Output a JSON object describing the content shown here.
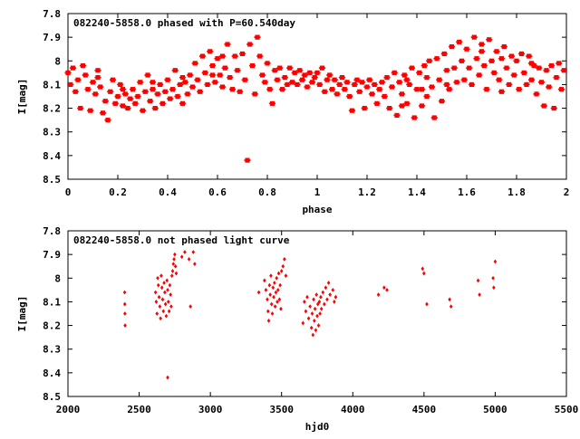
{
  "chart_data": [
    {
      "type": "scatter",
      "title": "082240-5858.0 phased with P=60.540day",
      "xlabel": "phase",
      "ylabel": "I[mag]",
      "xlim": [
        0,
        2
      ],
      "ylim": [
        7.8,
        8.5
      ],
      "y_inverted": true,
      "x_ticks": [
        "0",
        "0.2",
        "0.4",
        "0.6",
        "0.8",
        "1",
        "1.2",
        "1.4",
        "1.6",
        "1.8",
        "2"
      ],
      "x_tick_values": [
        0,
        0.2,
        0.4,
        0.6,
        0.8,
        1,
        1.2,
        1.4,
        1.6,
        1.8,
        2
      ],
      "y_ticks": [
        "7.8",
        "7.9",
        "8",
        "8.1",
        "8.2",
        "8.3",
        "8.4",
        "8.5"
      ],
      "y_tick_values": [
        7.8,
        7.9,
        8,
        8.1,
        8.2,
        8.3,
        8.4,
        8.5
      ],
      "grid": false,
      "marker_color": "#ff0000",
      "points": [
        [
          0.0,
          8.05
        ],
        [
          0.01,
          8.1
        ],
        [
          0.02,
          8.03
        ],
        [
          0.03,
          8.13
        ],
        [
          0.04,
          8.08
        ],
        [
          0.05,
          8.2
        ],
        [
          0.06,
          8.02
        ],
        [
          0.07,
          8.06
        ],
        [
          0.08,
          8.12
        ],
        [
          0.09,
          8.21
        ],
        [
          0.1,
          8.09
        ],
        [
          0.11,
          8.14
        ],
        [
          0.12,
          8.04
        ],
        [
          0.13,
          8.11
        ],
        [
          0.14,
          8.22
        ],
        [
          0.15,
          8.17
        ],
        [
          0.16,
          8.25
        ],
        [
          0.17,
          8.13
        ],
        [
          0.18,
          8.08
        ],
        [
          0.19,
          8.18
        ],
        [
          0.2,
          8.15
        ],
        [
          0.21,
          8.1
        ],
        [
          0.22,
          8.19
        ],
        [
          0.23,
          8.14
        ],
        [
          0.24,
          8.2
        ],
        [
          0.25,
          8.16
        ],
        [
          0.26,
          8.12
        ],
        [
          0.27,
          8.18
        ],
        [
          0.28,
          8.15
        ],
        [
          0.29,
          8.09
        ],
        [
          0.3,
          8.21
        ],
        [
          0.31,
          8.13
        ],
        [
          0.32,
          8.06
        ],
        [
          0.33,
          8.17
        ],
        [
          0.34,
          8.12
        ],
        [
          0.35,
          8.2
        ],
        [
          0.36,
          8.14
        ],
        [
          0.37,
          8.1
        ],
        [
          0.38,
          8.18
        ],
        [
          0.39,
          8.13
        ],
        [
          0.4,
          8.08
        ],
        [
          0.41,
          8.16
        ],
        [
          0.42,
          8.12
        ],
        [
          0.43,
          8.04
        ],
        [
          0.44,
          8.15
        ],
        [
          0.45,
          8.1
        ],
        [
          0.46,
          8.18
        ],
        [
          0.47,
          8.09
        ],
        [
          0.48,
          8.14
        ],
        [
          0.49,
          8.06
        ],
        [
          0.5,
          8.11
        ],
        [
          0.51,
          8.01
        ],
        [
          0.52,
          8.08
        ],
        [
          0.53,
          8.13
        ],
        [
          0.54,
          7.98
        ],
        [
          0.55,
          8.05
        ],
        [
          0.56,
          8.1
        ],
        [
          0.57,
          7.96
        ],
        [
          0.58,
          8.02
        ],
        [
          0.59,
          8.09
        ],
        [
          0.6,
          7.99
        ],
        [
          0.61,
          8.06
        ],
        [
          0.62,
          8.11
        ],
        [
          0.63,
          8.03
        ],
        [
          0.64,
          7.93
        ],
        [
          0.65,
          8.07
        ],
        [
          0.66,
          8.12
        ],
        [
          0.67,
          7.98
        ],
        [
          0.68,
          8.04
        ],
        [
          0.69,
          8.13
        ],
        [
          0.7,
          7.97
        ],
        [
          0.71,
          8.08
        ],
        [
          0.72,
          8.42
        ],
        [
          0.73,
          7.93
        ],
        [
          0.74,
          8.02
        ],
        [
          0.75,
          8.14
        ],
        [
          0.76,
          7.9
        ],
        [
          0.77,
          7.98
        ],
        [
          0.78,
          8.06
        ],
        [
          0.79,
          8.09
        ],
        [
          0.8,
          8.01
        ],
        [
          0.81,
          8.12
        ],
        [
          0.82,
          8.18
        ],
        [
          0.83,
          8.04
        ],
        [
          0.84,
          8.08
        ],
        [
          0.85,
          8.03
        ],
        [
          0.86,
          8.12
        ],
        [
          0.87,
          8.07
        ],
        [
          0.88,
          8.1
        ],
        [
          0.89,
          8.03
        ],
        [
          0.9,
          8.09
        ],
        [
          0.91,
          8.05
        ],
        [
          0.92,
          8.1
        ],
        [
          0.93,
          8.04
        ],
        [
          0.94,
          8.08
        ],
        [
          0.95,
          8.06
        ],
        [
          0.96,
          8.11
        ],
        [
          0.97,
          8.05
        ],
        [
          0.98,
          8.09
        ],
        [
          0.99,
          8.07
        ],
        [
          1.0,
          8.05
        ],
        [
          1.01,
          8.1
        ],
        [
          1.02,
          8.03
        ],
        [
          1.03,
          8.13
        ],
        [
          1.04,
          8.08
        ],
        [
          1.05,
          8.06
        ],
        [
          1.06,
          8.12
        ],
        [
          1.07,
          8.08
        ],
        [
          1.08,
          8.14
        ],
        [
          1.09,
          8.1
        ],
        [
          1.1,
          8.07
        ],
        [
          1.11,
          8.12
        ],
        [
          1.12,
          8.09
        ],
        [
          1.13,
          8.15
        ],
        [
          1.14,
          8.21
        ],
        [
          1.15,
          8.1
        ],
        [
          1.16,
          8.08
        ],
        [
          1.17,
          8.13
        ],
        [
          1.18,
          8.09
        ],
        [
          1.19,
          8.2
        ],
        [
          1.2,
          8.11
        ],
        [
          1.21,
          8.08
        ],
        [
          1.22,
          8.14
        ],
        [
          1.23,
          8.1
        ],
        [
          1.24,
          8.18
        ],
        [
          1.25,
          8.12
        ],
        [
          1.26,
          8.09
        ],
        [
          1.27,
          8.15
        ],
        [
          1.28,
          8.07
        ],
        [
          1.29,
          8.2
        ],
        [
          1.3,
          8.11
        ],
        [
          1.31,
          8.05
        ],
        [
          1.32,
          8.23
        ],
        [
          1.33,
          8.09
        ],
        [
          1.34,
          8.14
        ],
        [
          1.35,
          8.06
        ],
        [
          1.36,
          8.18
        ],
        [
          1.37,
          8.1
        ],
        [
          1.38,
          8.03
        ],
        [
          1.39,
          8.24
        ],
        [
          1.4,
          8.12
        ],
        [
          1.41,
          8.05
        ],
        [
          1.42,
          8.19
        ],
        [
          1.43,
          8.02
        ],
        [
          1.44,
          8.15
        ],
        [
          1.45,
          8.0
        ],
        [
          1.46,
          8.11
        ],
        [
          1.47,
          8.24
        ],
        [
          1.48,
          7.99
        ],
        [
          1.49,
          8.08
        ],
        [
          1.5,
          8.17
        ],
        [
          1.51,
          7.97
        ],
        [
          1.52,
          8.04
        ],
        [
          1.53,
          8.12
        ],
        [
          1.54,
          7.94
        ],
        [
          1.55,
          8.03
        ],
        [
          1.56,
          8.09
        ],
        [
          1.57,
          7.92
        ],
        [
          1.58,
          8.0
        ],
        [
          1.59,
          8.08
        ],
        [
          1.6,
          7.95
        ],
        [
          1.61,
          8.03
        ],
        [
          1.62,
          8.1
        ],
        [
          1.63,
          7.9
        ],
        [
          1.64,
          7.99
        ],
        [
          1.65,
          8.06
        ],
        [
          1.66,
          7.93
        ],
        [
          1.67,
          8.02
        ],
        [
          1.68,
          8.12
        ],
        [
          1.69,
          7.91
        ],
        [
          1.7,
          8.0
        ],
        [
          1.71,
          8.05
        ],
        [
          1.72,
          7.96
        ],
        [
          1.73,
          8.08
        ],
        [
          1.74,
          8.13
        ],
        [
          1.75,
          7.94
        ],
        [
          1.76,
          8.03
        ],
        [
          1.77,
          8.1
        ],
        [
          1.78,
          7.98
        ],
        [
          1.79,
          8.06
        ],
        [
          1.8,
          8.0
        ],
        [
          1.81,
          8.12
        ],
        [
          1.82,
          7.97
        ],
        [
          1.83,
          8.05
        ],
        [
          1.84,
          8.1
        ],
        [
          1.85,
          7.98
        ],
        [
          1.86,
          8.08
        ],
        [
          1.87,
          8.02
        ],
        [
          1.88,
          8.14
        ],
        [
          1.89,
          8.03
        ],
        [
          1.9,
          8.09
        ],
        [
          1.91,
          8.19
        ],
        [
          1.92,
          8.04
        ],
        [
          1.93,
          8.11
        ],
        [
          1.94,
          8.02
        ],
        [
          1.95,
          8.2
        ],
        [
          1.96,
          8.07
        ],
        [
          1.97,
          8.01
        ],
        [
          1.98,
          8.12
        ],
        [
          1.99,
          8.04
        ],
        [
          0.12,
          8.07
        ],
        [
          0.22,
          8.12
        ],
        [
          0.34,
          8.09
        ],
        [
          0.46,
          8.07
        ],
        [
          0.58,
          8.06
        ],
        [
          0.62,
          7.98
        ],
        [
          1.52,
          8.1
        ],
        [
          1.66,
          7.96
        ],
        [
          1.74,
          7.99
        ],
        [
          1.86,
          8.01
        ],
        [
          1.36,
          8.08
        ],
        [
          1.42,
          8.12
        ],
        [
          1.44,
          8.07
        ],
        [
          1.34,
          8.19
        ]
      ]
    },
    {
      "type": "scatter",
      "title": "082240-5858.0 not phased light curve",
      "xlabel": "hjd0",
      "ylabel": "I[mag]",
      "xlim": [
        2000,
        5500
      ],
      "ylim": [
        7.8,
        8.5
      ],
      "y_inverted": true,
      "x_ticks": [
        "2000",
        "2500",
        "3000",
        "3500",
        "4000",
        "4500",
        "5000",
        "5500"
      ],
      "x_tick_values": [
        2000,
        2500,
        3000,
        3500,
        4000,
        4500,
        5000,
        5500
      ],
      "y_ticks": [
        "7.8",
        "7.9",
        "8",
        "8.1",
        "8.2",
        "8.3",
        "8.4",
        "8.5"
      ],
      "y_tick_values": [
        7.8,
        7.9,
        8,
        8.1,
        8.2,
        8.3,
        8.4,
        8.5
      ],
      "grid": false,
      "marker_color": "#ff0000",
      "points": [
        [
          2398,
          8.06
        ],
        [
          2399,
          8.11
        ],
        [
          2400,
          8.15
        ],
        [
          2401,
          8.2
        ],
        [
          2615,
          8.06
        ],
        [
          2620,
          8.1
        ],
        [
          2625,
          8.15
        ],
        [
          2630,
          8.0
        ],
        [
          2635,
          8.03
        ],
        [
          2640,
          8.08
        ],
        [
          2645,
          8.12
        ],
        [
          2650,
          8.17
        ],
        [
          2655,
          7.99
        ],
        [
          2660,
          8.04
        ],
        [
          2665,
          8.09
        ],
        [
          2670,
          8.14
        ],
        [
          2675,
          8.02
        ],
        [
          2680,
          8.06
        ],
        [
          2685,
          8.11
        ],
        [
          2690,
          8.16
        ],
        [
          2695,
          8.01
        ],
        [
          2700,
          8.05
        ],
        [
          2705,
          8.1
        ],
        [
          2710,
          8.14
        ],
        [
          2715,
          8.03
        ],
        [
          2720,
          8.07
        ],
        [
          2725,
          8.12
        ],
        [
          2730,
          7.99
        ],
        [
          2735,
          7.97
        ],
        [
          2740,
          7.94
        ],
        [
          2745,
          7.92
        ],
        [
          2750,
          7.9
        ],
        [
          2755,
          7.95
        ],
        [
          2760,
          7.98
        ],
        [
          2700,
          8.42
        ],
        [
          2800,
          7.91
        ],
        [
          2820,
          7.89
        ],
        [
          2850,
          7.92
        ],
        [
          2860,
          8.12
        ],
        [
          2880,
          7.89
        ],
        [
          2890,
          7.94
        ],
        [
          3340,
          8.06
        ],
        [
          3380,
          8.01
        ],
        [
          3390,
          8.05
        ],
        [
          3400,
          8.09
        ],
        [
          3405,
          8.14
        ],
        [
          3410,
          8.18
        ],
        [
          3415,
          8.03
        ],
        [
          3420,
          8.07
        ],
        [
          3425,
          7.99
        ],
        [
          3430,
          8.11
        ],
        [
          3435,
          8.15
        ],
        [
          3440,
          8.04
        ],
        [
          3445,
          8.08
        ],
        [
          3450,
          8.02
        ],
        [
          3455,
          8.12
        ],
        [
          3460,
          8.06
        ],
        [
          3465,
          8.0
        ],
        [
          3470,
          8.1
        ],
        [
          3475,
          8.05
        ],
        [
          3480,
          7.98
        ],
        [
          3485,
          8.09
        ],
        [
          3490,
          8.03
        ],
        [
          3495,
          8.13
        ],
        [
          3500,
          7.97
        ],
        [
          3510,
          7.95
        ],
        [
          3520,
          7.92
        ],
        [
          3530,
          7.99
        ],
        [
          3650,
          8.19
        ],
        [
          3660,
          8.1
        ],
        [
          3670,
          8.14
        ],
        [
          3680,
          8.08
        ],
        [
          3690,
          8.17
        ],
        [
          3700,
          8.12
        ],
        [
          3710,
          8.21
        ],
        [
          3715,
          8.15
        ],
        [
          3720,
          8.24
        ],
        [
          3725,
          8.09
        ],
        [
          3730,
          8.18
        ],
        [
          3735,
          8.13
        ],
        [
          3740,
          8.22
        ],
        [
          3745,
          8.07
        ],
        [
          3750,
          8.16
        ],
        [
          3755,
          8.11
        ],
        [
          3760,
          8.2
        ],
        [
          3765,
          8.1
        ],
        [
          3770,
          8.15
        ],
        [
          3775,
          8.08
        ],
        [
          3780,
          8.13
        ],
        [
          3790,
          8.06
        ],
        [
          3800,
          8.11
        ],
        [
          3810,
          8.04
        ],
        [
          3820,
          8.09
        ],
        [
          3830,
          8.02
        ],
        [
          3840,
          8.07
        ],
        [
          3860,
          8.05
        ],
        [
          3870,
          8.1
        ],
        [
          3880,
          8.08
        ],
        [
          4180,
          8.07
        ],
        [
          4220,
          8.04
        ],
        [
          4240,
          8.05
        ],
        [
          4490,
          7.96
        ],
        [
          4500,
          7.98
        ],
        [
          4520,
          8.11
        ],
        [
          4680,
          8.09
        ],
        [
          4690,
          8.12
        ],
        [
          4880,
          8.01
        ],
        [
          4890,
          8.07
        ],
        [
          4985,
          8.0
        ],
        [
          4990,
          8.04
        ],
        [
          5000,
          7.93
        ]
      ]
    }
  ]
}
